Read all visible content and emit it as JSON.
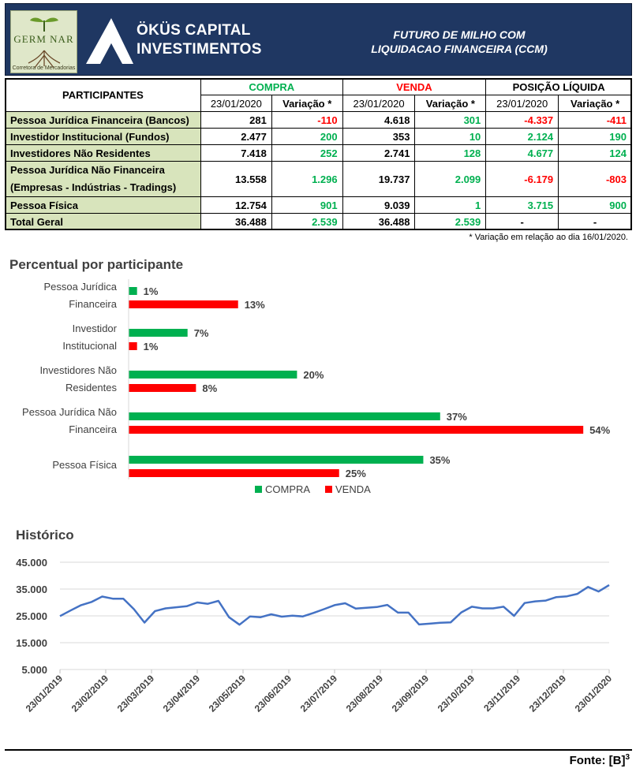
{
  "header": {
    "logo_left_text": "GERM NAR",
    "logo_left_sub": "Corretora de Mercadorias",
    "brand_line1": "ÖKÜS CAPITAL",
    "brand_line2": "INVESTIMENTOS",
    "title_line1": "FUTURO DE MILHO COM",
    "title_line2": "LIQUIDACAO FINANCEIRA (CCM)"
  },
  "table": {
    "participants_header": "PARTICIPANTES",
    "group_compra": "COMPRA",
    "group_venda": "VENDA",
    "group_posicao": "POSIÇÃO LÍQUIDA",
    "sub_date": "23/01/2020",
    "sub_var": "Variação *",
    "rows": [
      {
        "label": "Pessoa Jurídica Financeira (Bancos)",
        "label2": "",
        "c": "281",
        "cv": "-110",
        "v": "4.618",
        "vv": "301",
        "p": "-4.337",
        "pv": "-411"
      },
      {
        "label": "Investidor Institucional (Fundos)",
        "label2": "",
        "c": "2.477",
        "cv": "200",
        "v": "353",
        "vv": "10",
        "p": "2.124",
        "pv": "190"
      },
      {
        "label": "Investidores Não Residentes",
        "label2": "",
        "c": "7.418",
        "cv": "252",
        "v": "2.741",
        "vv": "128",
        "p": "4.677",
        "pv": "124"
      },
      {
        "label": "Pessoa Jurídica Não Financeira",
        "label2": "(Empresas - Indústrias - Tradings)",
        "c": "13.558",
        "cv": "1.296",
        "v": "19.737",
        "vv": "2.099",
        "p": "-6.179",
        "pv": "-803"
      },
      {
        "label": "Pessoa Física",
        "label2": "",
        "c": "12.754",
        "cv": "901",
        "v": "9.039",
        "vv": "1",
        "p": "3.715",
        "pv": "900"
      },
      {
        "label": "Total Geral",
        "label2": "",
        "c": "36.488",
        "cv": "2.539",
        "v": "36.488",
        "vv": "2.539",
        "p": "-",
        "pv": "-"
      }
    ]
  },
  "footnote": "* Variação em relação ao dia 16/01/2020.",
  "colors": {
    "green": "#00b050",
    "red": "#ff0000",
    "navy": "#1f3762",
    "row_bg": "#d8e4bc",
    "line": "#4472c4"
  },
  "chart_data": [
    {
      "type": "bar",
      "title": "Percentual por participante",
      "categories": [
        "Pessoa Jurídica Financeira",
        "Investidor Institucional",
        "Investidores Não Residentes",
        "Pessoa Jurídica Não Financeira",
        "Pessoa Física"
      ],
      "series": [
        {
          "name": "COMPRA",
          "values": [
            1,
            7,
            20,
            37,
            35
          ],
          "labels": [
            "1%",
            "7%",
            "20%",
            "37%",
            "35%"
          ]
        },
        {
          "name": "VENDA",
          "values": [
            13,
            1,
            8,
            54,
            25
          ],
          "labels": [
            "13%",
            "1%",
            "8%",
            "54%",
            "25%"
          ]
        }
      ],
      "legend": "bottom"
    },
    {
      "type": "line",
      "title": "Histórico",
      "ylim": [
        5000,
        45000
      ],
      "yticks": [
        "45.000",
        "35.000",
        "25.000",
        "15.000",
        "5.000"
      ],
      "xticks": [
        "23/01/2019",
        "23/02/2019",
        "23/03/2019",
        "23/04/2019",
        "23/05/2019",
        "23/06/2019",
        "23/07/2019",
        "23/08/2019",
        "23/09/2019",
        "23/10/2019",
        "23/11/2019",
        "23/12/2019",
        "23/01/2020"
      ],
      "values": [
        24900,
        27000,
        29000,
        30200,
        32200,
        31400,
        31400,
        27500,
        22500,
        26800,
        27800,
        28200,
        28600,
        30000,
        29500,
        30600,
        24500,
        21700,
        24800,
        24500,
        25600,
        24700,
        25100,
        24800,
        26100,
        27500,
        29000,
        29700,
        27700,
        28000,
        28300,
        29100,
        26200,
        26200,
        21800,
        22100,
        22400,
        22600,
        26300,
        28400,
        27800,
        27800,
        28400,
        25000,
        29800,
        30400,
        30700,
        32000,
        32300,
        33200,
        35800,
        34100,
        36500
      ]
    }
  ],
  "source_text": "Fonte: [B]",
  "source_sup": "3"
}
